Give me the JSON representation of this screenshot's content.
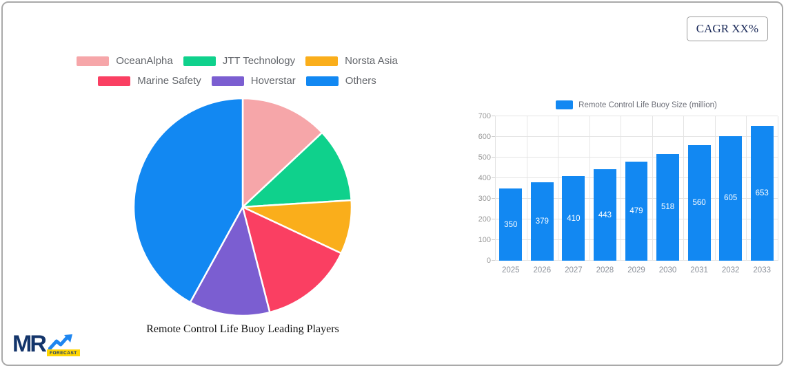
{
  "badge": {
    "label": "CAGR XX%"
  },
  "logo": {
    "brand": "MR",
    "tagline": "FORECAST",
    "brand_color": "#14356b",
    "arrow_color": "#1e86f0",
    "badge_color": "#ffd602"
  },
  "chart_data": [
    {
      "type": "pie",
      "title": "Remote Control Life Buoy Leading Players",
      "labels": [
        "OceanAlpha",
        "JTT Technology",
        "Norsta Asia",
        "Marine Safety",
        "Hoverstar",
        "Others"
      ],
      "values": [
        13,
        11,
        8,
        14,
        12,
        42
      ],
      "colors": [
        "#f6a6a9",
        "#0fd18c",
        "#faae1b",
        "#fa3f62",
        "#7b5ed1",
        "#1288f2"
      ],
      "legend_position": "top",
      "legend_rows": 2,
      "start_angle_deg": -90,
      "slice_border_color": "#ffffff"
    },
    {
      "type": "bar",
      "legend": [
        "Remote Control Life Buoy Size (million)"
      ],
      "categories": [
        "2025",
        "2026",
        "2027",
        "2028",
        "2029",
        "2030",
        "2031",
        "2032",
        "2033"
      ],
      "values": [
        350,
        379,
        410,
        443,
        479,
        518,
        560,
        605,
        653
      ],
      "ylim": [
        0,
        700
      ],
      "y_ticks": [
        0,
        100,
        200,
        300,
        400,
        500,
        600,
        700
      ],
      "grid": true,
      "bar_color": "#1288f2",
      "value_label_color": "#ffffff",
      "value_label_position": "inside-center",
      "legend_position": "top"
    }
  ]
}
